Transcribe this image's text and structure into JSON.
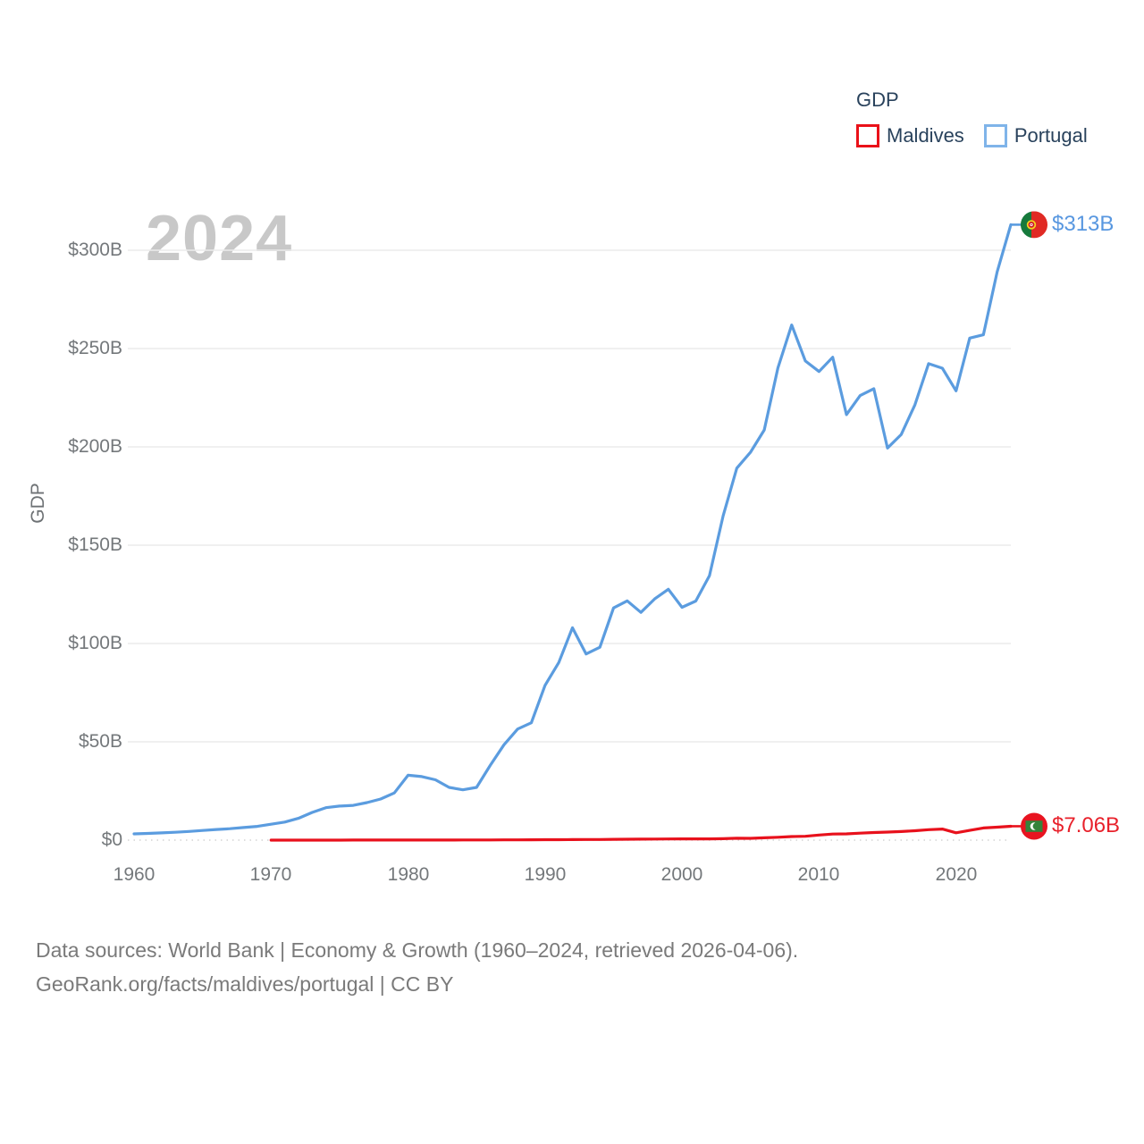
{
  "watermark": "2024",
  "legend": {
    "title": "GDP",
    "items": [
      {
        "label": "Maldives",
        "color": "#ea1119"
      },
      {
        "label": "Portugal",
        "color": "#7fb4e9"
      }
    ]
  },
  "y_axis": {
    "title": "GDP",
    "ticks": [
      "$0",
      "$50B",
      "$100B",
      "$150B",
      "$200B",
      "$250B",
      "$300B"
    ]
  },
  "x_axis": {
    "ticks": [
      "1960",
      "1970",
      "1980",
      "1990",
      "2000",
      "2010",
      "2020"
    ]
  },
  "end_labels": {
    "portugal": "$313B",
    "maldives": "$7.06B"
  },
  "footer": {
    "line1": "Data sources: World Bank | Economy & Growth (1960–2024, retrieved 2026-04-06).",
    "line2": "GeoRank.org/facts/maldives/portugal | CC BY"
  },
  "chart_data": {
    "type": "line",
    "title": "GDP",
    "xlabel": "",
    "ylabel": "GDP",
    "x_range": [
      1960,
      2024
    ],
    "ylim": [
      0,
      318
    ],
    "y_tick_values": [
      0,
      50,
      100,
      150,
      200,
      250,
      300
    ],
    "x_tick_values": [
      1960,
      1970,
      1980,
      1990,
      2000,
      2010,
      2020
    ],
    "grid": true,
    "legend_position": "top-right",
    "units": "billions USD",
    "series": [
      {
        "name": "Portugal",
        "color": "#5b9cdf",
        "start_year": 1960,
        "end_label": "$313B",
        "values": [
          3.2,
          3.4,
          3.7,
          4.0,
          4.4,
          4.9,
          5.4,
          5.8,
          6.4,
          7.0,
          8.1,
          9.2,
          11.1,
          14.1,
          16.5,
          17.3,
          17.7,
          19.1,
          20.9,
          24.0,
          33.0,
          32.3,
          30.7,
          26.8,
          25.6,
          26.8,
          38.0,
          48.5,
          56.5,
          59.7,
          78.7,
          90.3,
          108.0,
          94.7,
          98.1,
          118.1,
          121.7,
          115.8,
          122.7,
          127.6,
          118.4,
          121.6,
          134.5,
          164.9,
          189.2,
          197.3,
          208.6,
          240.2,
          262.0,
          243.7,
          238.3,
          245.6,
          216.4,
          226.1,
          229.6,
          199.4,
          206.3,
          221.4,
          242.3,
          240.0,
          228.5,
          255.3,
          257.0,
          289.0,
          313.0
        ]
      },
      {
        "name": "Maldives",
        "color": "#e8111c",
        "start_year": 1970,
        "end_label": "$7.06B",
        "values": [
          0.01,
          0.01,
          0.01,
          0.02,
          0.02,
          0.02,
          0.03,
          0.03,
          0.04,
          0.04,
          0.04,
          0.05,
          0.05,
          0.06,
          0.07,
          0.09,
          0.1,
          0.12,
          0.14,
          0.17,
          0.22,
          0.25,
          0.28,
          0.3,
          0.33,
          0.4,
          0.44,
          0.49,
          0.54,
          0.6,
          0.62,
          0.62,
          0.64,
          0.73,
          0.94,
          0.9,
          1.17,
          1.47,
          1.8,
          1.94,
          2.59,
          3.08,
          3.16,
          3.54,
          3.87,
          4.11,
          4.38,
          4.76,
          5.3,
          5.64,
          3.75,
          4.94,
          6.17,
          6.61,
          7.06
        ]
      }
    ]
  }
}
